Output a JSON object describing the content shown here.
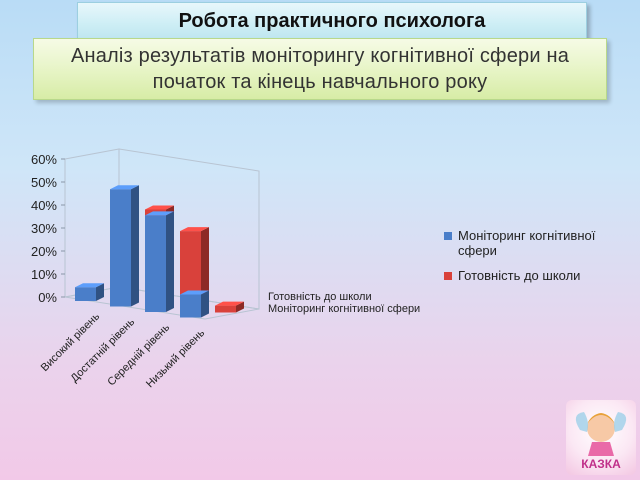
{
  "slide": {
    "title": "Робота практичного психолога",
    "subtitle_line1": "Аналіз результатів моніторингу когнітивної сфери на",
    "subtitle_line2": "початок та кінець навчального року"
  },
  "logo": {
    "text": "КАЗКА"
  },
  "chart_data": {
    "type": "bar",
    "style": "3d-clustered-columns",
    "categories": [
      "Високий рівень",
      "Достатній рівень",
      "Середній рівень",
      "Низький рівень"
    ],
    "series": [
      {
        "name": "Моніторинг когнітивної сфери",
        "color": "#4a7ec9",
        "values": [
          6,
          51,
          42,
          10
        ]
      },
      {
        "name": "Готовність до школи",
        "color": "#d9413b",
        "values": [
          26,
          40,
          33,
          3
        ]
      }
    ],
    "ylim": [
      0,
      60
    ],
    "ytick_labels": [
      "0%",
      "10%",
      "20%",
      "30%",
      "40%",
      "50%",
      "60%"
    ],
    "depth_axis_labels": [
      "Готовність до школи",
      "Моніторинг когнітивної сфери"
    ],
    "legend": [
      "Моніторинг когнітивної",
      "сфери",
      "Готовність до школи"
    ],
    "legend_position": "right",
    "grid": false
  }
}
